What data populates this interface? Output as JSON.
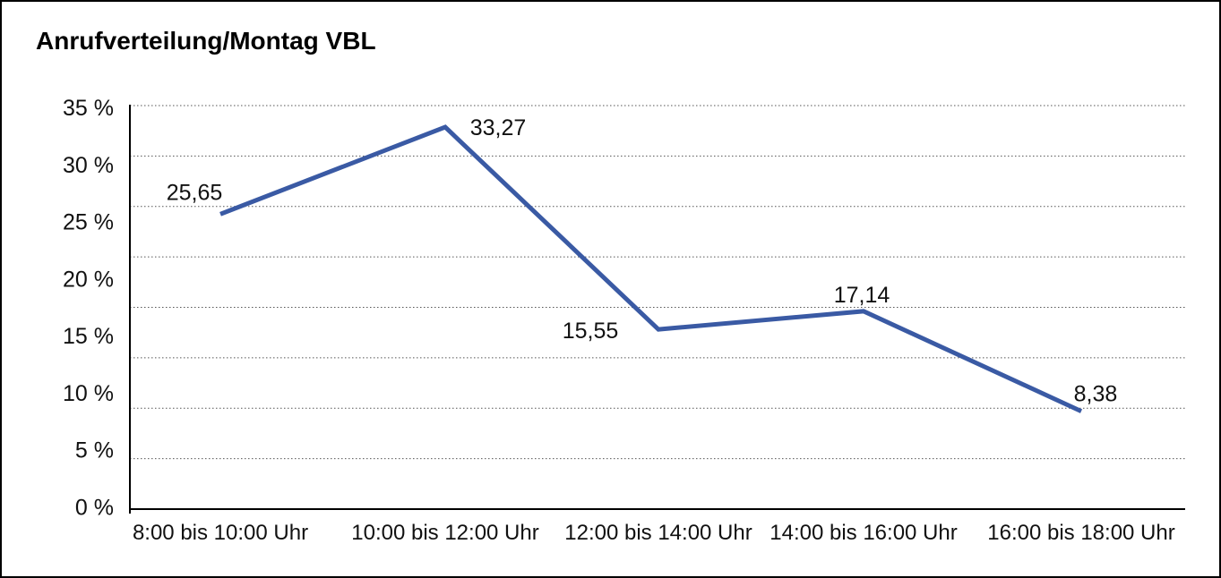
{
  "title": "Anrufverteilung/Montag VBL",
  "chart_data": {
    "type": "line",
    "title": "Anrufverteilung/Montag VBL",
    "categories": [
      "8:00 bis 10:00 Uhr",
      "10:00 bis 12:00 Uhr",
      "12:00 bis 14:00 Uhr",
      "14:00 bis 16:00 Uhr",
      "16:00 bis 18:00 Uhr"
    ],
    "series": [
      {
        "name": "Anrufverteilung Montag VBL",
        "values": [
          25.65,
          33.27,
          15.55,
          17.14,
          8.38
        ],
        "point_labels": [
          "25,65",
          "33,27",
          "15,55",
          "17,14",
          "8,38"
        ]
      }
    ],
    "xlabel": "",
    "ylabel": "",
    "ytick_labels": [
      "0 %",
      "5 %",
      "10 %",
      "15 %",
      "20 %",
      "25 %",
      "30 %",
      "35 %"
    ],
    "ylim": [
      0,
      35
    ],
    "ytick_step": 5,
    "grid": "horizontal-dotted",
    "gridline_count": 9,
    "legend": "none",
    "colors": {
      "line": "#3A5AA4",
      "axis": "#000000",
      "gridline": "#555555",
      "text": "#111111",
      "background": "#ffffff",
      "border": "#000000"
    }
  }
}
